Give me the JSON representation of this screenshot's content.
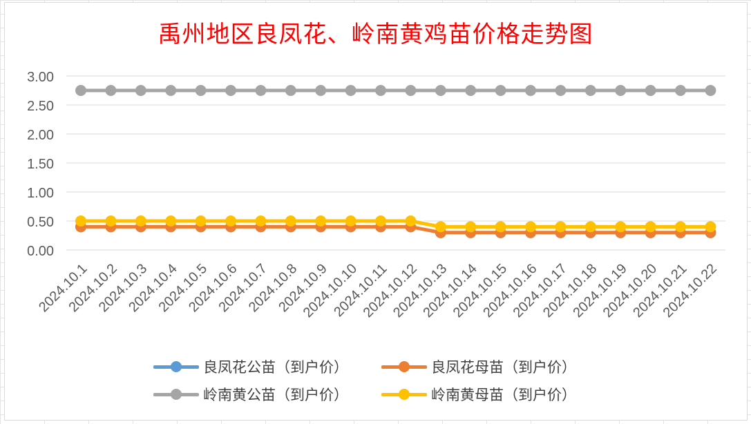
{
  "colors": {
    "title": "#ff0000",
    "axis_text": "#595959",
    "gridline": "#d9d9d9",
    "series": [
      "#5b9bd5",
      "#ed7d31",
      "#a5a5a5",
      "#ffc000"
    ]
  },
  "chart_data": {
    "type": "line",
    "title": "禹州地区良凤花、岭南黄鸡苗价格走势图",
    "xlabel": "",
    "ylabel": "",
    "ylim": [
      0,
      3
    ],
    "y_ticks": [
      "0.00",
      "0.50",
      "1.00",
      "1.50",
      "2.00",
      "2.50",
      "3.00"
    ],
    "grid": true,
    "legend_position": "bottom",
    "categories": [
      "2024.10.1",
      "2024.10.2",
      "2024.10.3",
      "2024.10.4",
      "2024.10.5",
      "2024.10.6",
      "2024.10.7",
      "2024.10.8",
      "2024.10.9",
      "2024.10.10",
      "2024.10.11",
      "2024.10.12",
      "2024.10.13",
      "2024.10.14",
      "2024.10.15",
      "2024.10.16",
      "2024.10.17",
      "2024.10.18",
      "2024.10.19",
      "2024.10.20",
      "2024.10.21",
      "2024.10.22"
    ],
    "series": [
      {
        "name": "良凤花公苗（到户价）",
        "color": "#5b9bd5",
        "values": [
          0.4,
          0.4,
          0.4,
          0.4,
          0.4,
          0.4,
          0.4,
          0.4,
          0.4,
          0.4,
          0.4,
          0.4,
          0.3,
          0.3,
          0.3,
          0.3,
          0.3,
          0.3,
          0.3,
          0.3,
          0.3,
          0.3
        ]
      },
      {
        "name": "良凤花母苗（到户价）",
        "color": "#ed7d31",
        "values": [
          0.4,
          0.4,
          0.4,
          0.4,
          0.4,
          0.4,
          0.4,
          0.4,
          0.4,
          0.4,
          0.4,
          0.4,
          0.3,
          0.3,
          0.3,
          0.3,
          0.3,
          0.3,
          0.3,
          0.3,
          0.3,
          0.3
        ]
      },
      {
        "name": "岭南黄公苗（到户价）",
        "color": "#a5a5a5",
        "values": [
          2.75,
          2.75,
          2.75,
          2.75,
          2.75,
          2.75,
          2.75,
          2.75,
          2.75,
          2.75,
          2.75,
          2.75,
          2.75,
          2.75,
          2.75,
          2.75,
          2.75,
          2.75,
          2.75,
          2.75,
          2.75,
          2.75
        ]
      },
      {
        "name": "岭南黄母苗（到户价）",
        "color": "#ffc000",
        "values": [
          0.5,
          0.5,
          0.5,
          0.5,
          0.5,
          0.5,
          0.5,
          0.5,
          0.5,
          0.5,
          0.5,
          0.5,
          0.4,
          0.4,
          0.4,
          0.4,
          0.4,
          0.4,
          0.4,
          0.4,
          0.4,
          0.4
        ]
      }
    ]
  }
}
